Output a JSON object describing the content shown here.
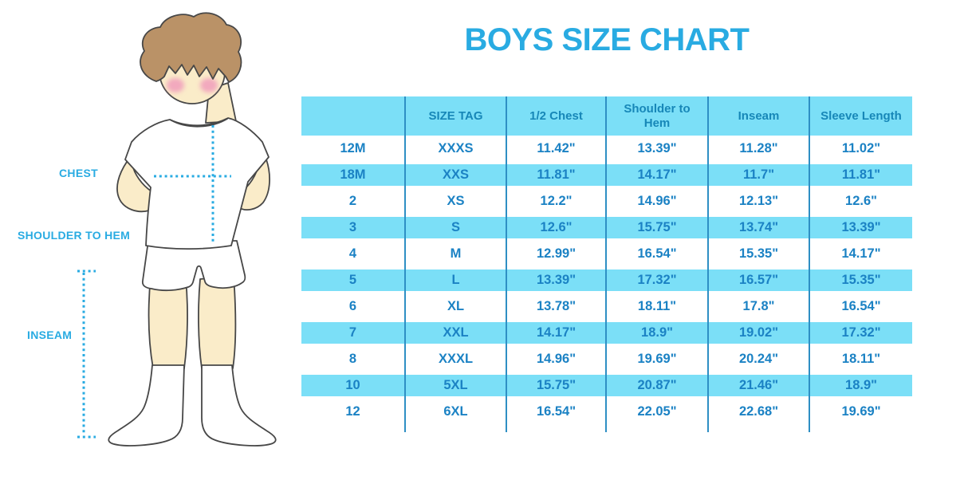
{
  "title": "BOYS SIZE CHART",
  "figure_labels": {
    "chest": "CHEST",
    "shoulder_to_hem": "SHOULDER TO HEM",
    "inseam": "INSEAM"
  },
  "chart_data": {
    "type": "table",
    "title": "BOYS SIZE CHART",
    "columns": [
      "",
      "SIZE TAG",
      "1/2 Chest",
      "Shoulder to Hem",
      "Inseam",
      "Sleeve Length"
    ],
    "rows": [
      [
        "12M",
        "XXXS",
        "11.42\"",
        "13.39\"",
        "11.28\"",
        "11.02\""
      ],
      [
        "18M",
        "XXS",
        "11.81\"",
        "14.17\"",
        "11.7\"",
        "11.81\""
      ],
      [
        "2",
        "XS",
        "12.2\"",
        "14.96\"",
        "12.13\"",
        "12.6\""
      ],
      [
        "3",
        "S",
        "12.6\"",
        "15.75\"",
        "13.74\"",
        "13.39\""
      ],
      [
        "4",
        "M",
        "12.99\"",
        "16.54\"",
        "15.35\"",
        "14.17\""
      ],
      [
        "5",
        "L",
        "13.39\"",
        "17.32\"",
        "16.57\"",
        "15.35\""
      ],
      [
        "6",
        "XL",
        "13.78\"",
        "18.11\"",
        "17.8\"",
        "16.54\""
      ],
      [
        "7",
        "XXL",
        "14.17\"",
        "18.9\"",
        "19.02\"",
        "17.32\""
      ],
      [
        "8",
        "XXXL",
        "14.96\"",
        "19.69\"",
        "20.24\"",
        "18.11\""
      ],
      [
        "10",
        "5XL",
        "15.75\"",
        "20.87\"",
        "21.46\"",
        "18.9\""
      ],
      [
        "12",
        "6XL",
        "16.54\"",
        "22.05\"",
        "22.68\"",
        "19.69\""
      ]
    ]
  },
  "colors": {
    "accent": "#29ABE2",
    "table_fill": "#7BDFF7",
    "cell_text": "#1B82C4",
    "header_text": "#1787B8",
    "border_blue": "#2E8FC4",
    "skin": "#FAECC9",
    "hair": "#BA9267",
    "cheek": "#F2A9BE",
    "outline": "#474747"
  }
}
